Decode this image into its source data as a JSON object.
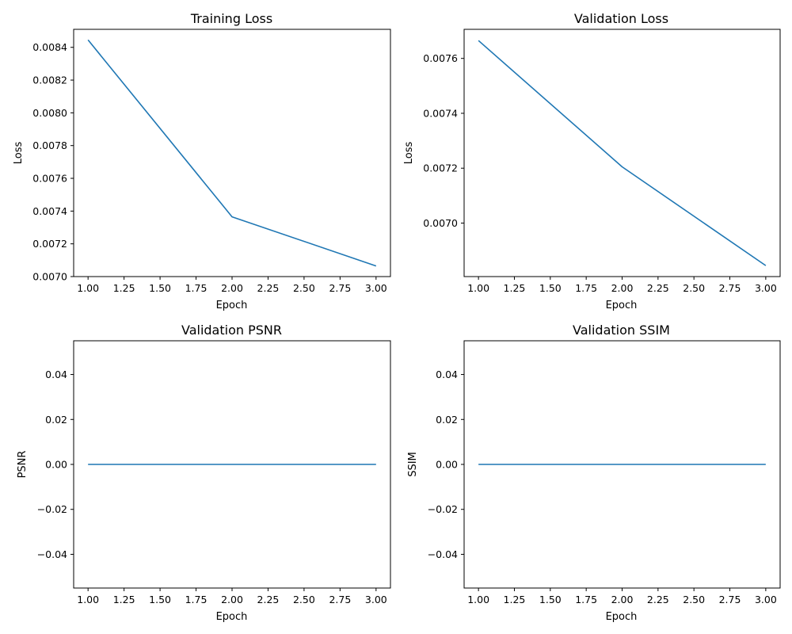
{
  "chart_data": [
    {
      "type": "line",
      "title": "Training Loss",
      "xlabel": "Epoch",
      "ylabel": "Loss",
      "x": [
        1,
        2,
        3
      ],
      "series": [
        {
          "values": [
            0.008445,
            0.007365,
            0.007065
          ],
          "color": "#1f77b4"
        }
      ],
      "xlim": [
        0.9,
        3.1
      ],
      "ylim": [
        0.007,
        0.00851
      ],
      "xticks": [
        "1.00",
        "1.25",
        "1.50",
        "1.75",
        "2.00",
        "2.25",
        "2.50",
        "2.75",
        "3.00"
      ],
      "yticks": [
        "0.0070",
        "0.0072",
        "0.0074",
        "0.0076",
        "0.0078",
        "0.0080",
        "0.0082",
        "0.0084"
      ],
      "grid": false
    },
    {
      "type": "line",
      "title": "Validation Loss",
      "xlabel": "Epoch",
      "ylabel": "Loss",
      "x": [
        1,
        2,
        3
      ],
      "series": [
        {
          "values": [
            0.007665,
            0.007205,
            0.006845
          ],
          "color": "#1f77b4"
        }
      ],
      "xlim": [
        0.9,
        3.1
      ],
      "ylim": [
        0.006805,
        0.007706
      ],
      "xticks": [
        "1.00",
        "1.25",
        "1.50",
        "1.75",
        "2.00",
        "2.25",
        "2.50",
        "2.75",
        "3.00"
      ],
      "yticks": [
        "0.0070",
        "0.0072",
        "0.0074",
        "0.0076"
      ],
      "grid": false
    },
    {
      "type": "line",
      "title": "Validation PSNR",
      "xlabel": "Epoch",
      "ylabel": "PSNR",
      "x": [
        1,
        2,
        3
      ],
      "series": [
        {
          "values": [
            0,
            0,
            0
          ],
          "color": "#1f77b4"
        }
      ],
      "xlim": [
        0.9,
        3.1
      ],
      "ylim": [
        -0.055,
        0.055
      ],
      "xticks": [
        "1.00",
        "1.25",
        "1.50",
        "1.75",
        "2.00",
        "2.25",
        "2.50",
        "2.75",
        "3.00"
      ],
      "yticks": [
        "−0.04",
        "−0.02",
        "0.00",
        "0.02",
        "0.04"
      ],
      "grid": false
    },
    {
      "type": "line",
      "title": "Validation SSIM",
      "xlabel": "Epoch",
      "ylabel": "SSIM",
      "x": [
        1,
        2,
        3
      ],
      "series": [
        {
          "values": [
            0,
            0,
            0
          ],
          "color": "#1f77b4"
        }
      ],
      "xlim": [
        0.9,
        3.1
      ],
      "ylim": [
        -0.055,
        0.055
      ],
      "xticks": [
        "1.00",
        "1.25",
        "1.50",
        "1.75",
        "2.00",
        "2.25",
        "2.50",
        "2.75",
        "3.00"
      ],
      "yticks": [
        "−0.04",
        "−0.02",
        "0.00",
        "0.02",
        "0.04"
      ],
      "grid": false
    }
  ]
}
